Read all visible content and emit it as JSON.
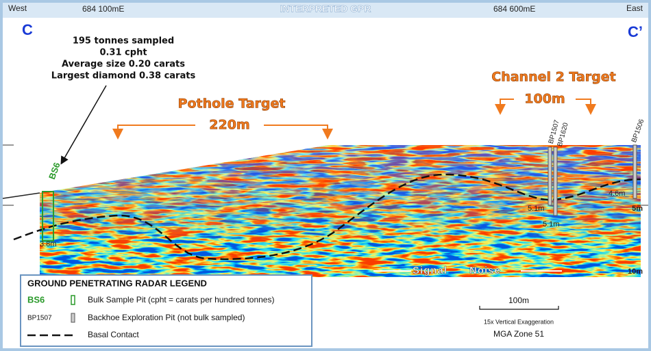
{
  "header": {
    "west": "West",
    "west_easting": "684 100mE",
    "title": "INTERPRETED GPR",
    "east_easting": "684 600mE",
    "east": "East",
    "section_start": "C",
    "section_end": "C’"
  },
  "annotation": {
    "lines": [
      "195 tonnes sampled",
      "0.31 cpht",
      "Average size 0.20 carats",
      "Largest diamond 0.38 carats"
    ]
  },
  "targets": [
    {
      "name": "Pothole Target",
      "width": "220m"
    },
    {
      "name": "Channel 2 Target",
      "width": "100m"
    }
  ],
  "pits": [
    "BS6",
    "BP1507",
    "BP1620",
    "BP1506"
  ],
  "depths": [
    "3.8m",
    "5.1m",
    "5.1m",
    "4.6m",
    "5m",
    "10m"
  ],
  "signal_noise": [
    "Signal",
    "Noise"
  ],
  "legend": {
    "title": "GROUND PENETRATING RADAR LEGEND",
    "rows": [
      {
        "symbol": "BS6",
        "text": "Bulk Sample Pit (cpht = carats per hundred tonnes)"
      },
      {
        "symbol": "BP1507",
        "text": "Backhoe Exploration Pit (not bulk sampled)"
      },
      {
        "text": "Basal Contact"
      }
    ]
  },
  "scale": {
    "bar": "100m",
    "exaggeration": "15x Vertical Exaggeration",
    "datum": "MGA Zone 51"
  }
}
